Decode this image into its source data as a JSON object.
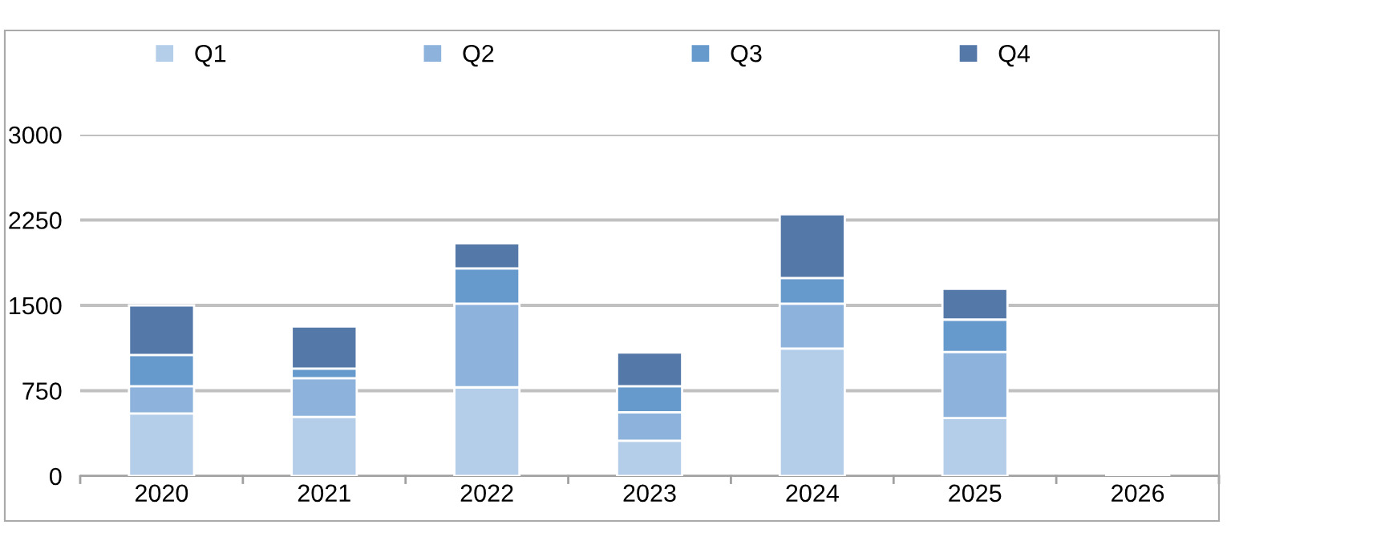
{
  "chart_data": {
    "type": "bar",
    "stacked": true,
    "categories": [
      "2020",
      "2021",
      "2022",
      "2023",
      "2024",
      "2025",
      "2026"
    ],
    "series": [
      {
        "name": "Q1",
        "color": "#b4cde8",
        "values": [
          550,
          520,
          780,
          310,
          1120,
          510,
          null
        ]
      },
      {
        "name": "Q2",
        "color": "#8db2db",
        "values": [
          240,
          340,
          735,
          250,
          395,
          580,
          null
        ]
      },
      {
        "name": "Q3",
        "color": "#6699cc",
        "values": [
          275,
          85,
          310,
          230,
          225,
          285,
          null
        ]
      },
      {
        "name": "Q4",
        "color": "#5479a8",
        "values": [
          435,
          370,
          220,
          295,
          560,
          270,
          null
        ]
      }
    ],
    "ylim": [
      0,
      3000
    ],
    "yticks": [
      0,
      750,
      1500,
      2250,
      3000
    ],
    "grid": "y",
    "legend": "top"
  }
}
